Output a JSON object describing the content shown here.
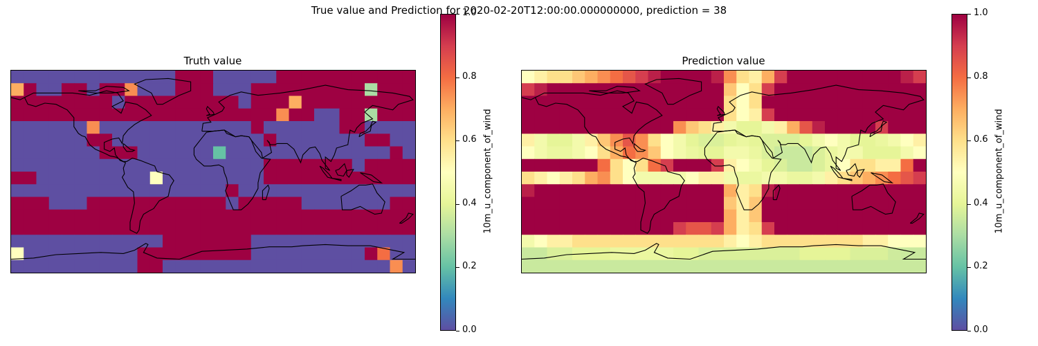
{
  "figure": {
    "suptitle": "True value and Prediction for 2020-02-20T12:00:00.000000000, prediction = 38"
  },
  "chart_data": [
    {
      "type": "heatmap",
      "title": "Truth value",
      "colormap": "Spectral_r",
      "colorbar": {
        "label": "10m_u_component_of_wind",
        "ticks": [
          "0.0",
          "0.2",
          "0.4",
          "0.6",
          "0.8",
          "1.0"
        ],
        "range": [
          0.0,
          1.0
        ]
      },
      "grid": {
        "rows": 16,
        "cols": 32
      },
      "values": [
        [
          0,
          0,
          0,
          0,
          0,
          0,
          0,
          0,
          0,
          0,
          0,
          0,
          0,
          1,
          1,
          1,
          0,
          0,
          0,
          0,
          0,
          1,
          1,
          1,
          1,
          1,
          1,
          1,
          1,
          1,
          1,
          1
        ],
        [
          0.7,
          1,
          0,
          0,
          1,
          1,
          0,
          1,
          1,
          0.75,
          0,
          0,
          0,
          1,
          1,
          1,
          0,
          0,
          0,
          1,
          1,
          1,
          1,
          1,
          1,
          1,
          1,
          1,
          0.3,
          1,
          1,
          1
        ],
        [
          1,
          1,
          1,
          1,
          1,
          1,
          1,
          1,
          0,
          1,
          1,
          1,
          1,
          1,
          1,
          1,
          1,
          1,
          0,
          1,
          1,
          1,
          0.7,
          1,
          1,
          1,
          1,
          1,
          1,
          1,
          1,
          1
        ],
        [
          1,
          1,
          1,
          1,
          1,
          1,
          1,
          1,
          1,
          1,
          1,
          1,
          1,
          1,
          1,
          1,
          1,
          1,
          1,
          1,
          1,
          0.75,
          1,
          1,
          0,
          0,
          1,
          1,
          0.3,
          1,
          1,
          1
        ],
        [
          0,
          0,
          0,
          0,
          0,
          0,
          0.75,
          0,
          0,
          0,
          0,
          0,
          0,
          0,
          0,
          0,
          0,
          0,
          0,
          1,
          0,
          0,
          0,
          0,
          0,
          0,
          1,
          1,
          0,
          0,
          0,
          0
        ],
        [
          0,
          0,
          0,
          0,
          0,
          0,
          1,
          1,
          0,
          0,
          0,
          0,
          0,
          0,
          0,
          0,
          0,
          0,
          0,
          0,
          1,
          0,
          0,
          0,
          0,
          0,
          0,
          0,
          1,
          1,
          0,
          0
        ],
        [
          0,
          0,
          0,
          0,
          0,
          0,
          0,
          1,
          1,
          1,
          0,
          0,
          0,
          0,
          0,
          0,
          0.2,
          0,
          0,
          0,
          0,
          0,
          0,
          0,
          0,
          0,
          0,
          0,
          0,
          0,
          1,
          0
        ],
        [
          0,
          0,
          0,
          0,
          0,
          0,
          0,
          0,
          0,
          0,
          0,
          0,
          0,
          0,
          0,
          0,
          0,
          0,
          0,
          0,
          1,
          1,
          1,
          1,
          1,
          1,
          1,
          0,
          1,
          1,
          1,
          1
        ],
        [
          1,
          1,
          0,
          0,
          0,
          0,
          0,
          0,
          0,
          0,
          0,
          0.5,
          0,
          0,
          0,
          0,
          0,
          0,
          0,
          0,
          1,
          1,
          1,
          1,
          1,
          1,
          1,
          1,
          1,
          1,
          1,
          1
        ],
        [
          0,
          0,
          0,
          0,
          0,
          0,
          0,
          0,
          0,
          0,
          0,
          0,
          0,
          0,
          0,
          0,
          0,
          1,
          0,
          0,
          0,
          0,
          0,
          0,
          0,
          0,
          0,
          0,
          0,
          0,
          0,
          0
        ],
        [
          1,
          1,
          1,
          0,
          0,
          0,
          1,
          1,
          1,
          1,
          1,
          1,
          1,
          1,
          1,
          1,
          1,
          0,
          1,
          1,
          1,
          1,
          1,
          0,
          0,
          0,
          0,
          0,
          0,
          0,
          1,
          1
        ],
        [
          1,
          1,
          1,
          1,
          1,
          1,
          1,
          1,
          1,
          1,
          1,
          1,
          1,
          1,
          1,
          1,
          1,
          1,
          1,
          1,
          1,
          1,
          1,
          1,
          1,
          1,
          1,
          1,
          1,
          1,
          1,
          1
        ],
        [
          1,
          1,
          1,
          1,
          1,
          1,
          1,
          1,
          1,
          1,
          1,
          1,
          1,
          1,
          1,
          1,
          1,
          1,
          1,
          1,
          1,
          1,
          1,
          1,
          1,
          1,
          1,
          1,
          1,
          1,
          1,
          1
        ],
        [
          0,
          0,
          0,
          0,
          0,
          0,
          0,
          0,
          0,
          0,
          0,
          0,
          1,
          1,
          1,
          1,
          1,
          1,
          1,
          0,
          0,
          0,
          0,
          0,
          0,
          0,
          0,
          0,
          0,
          0,
          0,
          0
        ],
        [
          0.5,
          0,
          0,
          0,
          0,
          0,
          0,
          0,
          0,
          0,
          1,
          1,
          1,
          1,
          1,
          1,
          1,
          1,
          1,
          0,
          0,
          0,
          0,
          0,
          0,
          0,
          0,
          0,
          1,
          0.8,
          0,
          0
        ],
        [
          0,
          0,
          0,
          0,
          0,
          0,
          0,
          0,
          0,
          0,
          1,
          1,
          0,
          0,
          0,
          0,
          0,
          0,
          0,
          0,
          0,
          0,
          0,
          0,
          0,
          0,
          0,
          0,
          0,
          0,
          0.75,
          0
        ]
      ]
    },
    {
      "type": "heatmap",
      "title": "Prediction value",
      "colormap": "Spectral_r",
      "colorbar": {
        "label": "10m_u_component_of_wind",
        "ticks": [
          "0.0",
          "0.2",
          "0.4",
          "0.6",
          "0.8",
          "1.0"
        ],
        "range": [
          0.0,
          1.0
        ]
      },
      "grid": {
        "rows": 16,
        "cols": 32
      },
      "values": [
        [
          0.5,
          0.55,
          0.6,
          0.6,
          0.65,
          0.7,
          0.75,
          0.8,
          0.85,
          0.9,
          0.95,
          1,
          1,
          1,
          1,
          0.95,
          0.75,
          0.6,
          0.55,
          0.7,
          0.9,
          1,
          1,
          1,
          1,
          1,
          1,
          1,
          1,
          1,
          0.95,
          0.9
        ],
        [
          0.9,
          0.95,
          1,
          1,
          1,
          1,
          1,
          1,
          1,
          1,
          1,
          1,
          1,
          1,
          1,
          1,
          0.65,
          0.5,
          0.6,
          0.9,
          1,
          1,
          1,
          1,
          1,
          1,
          1,
          1,
          1,
          1,
          1,
          1
        ],
        [
          1,
          1,
          1,
          1,
          1,
          1,
          1,
          1,
          1,
          1,
          1,
          1,
          1,
          1,
          1,
          1,
          0.6,
          0.5,
          0.6,
          1,
          1,
          1,
          1,
          1,
          1,
          1,
          1,
          1,
          1,
          1,
          1,
          1
        ],
        [
          1,
          1,
          1,
          1,
          1,
          1,
          1,
          1,
          1,
          1,
          1,
          1,
          1,
          1,
          1,
          1,
          0.6,
          0.5,
          0.55,
          0.9,
          1,
          1,
          1,
          1,
          1,
          1,
          1,
          1,
          1,
          1,
          1,
          1
        ],
        [
          1,
          1,
          1,
          1,
          1,
          1,
          1,
          1,
          1,
          1,
          1,
          1,
          0.75,
          0.65,
          0.6,
          0.55,
          0.45,
          0.4,
          0.4,
          0.45,
          0.55,
          0.7,
          0.85,
          0.95,
          1,
          1,
          1,
          1,
          0.9,
          1,
          1,
          1
        ],
        [
          0.55,
          0.45,
          0.4,
          0.4,
          0.45,
          0.55,
          0.65,
          0.75,
          0.85,
          0.75,
          0.6,
          0.5,
          0.45,
          0.4,
          0.38,
          0.38,
          0.4,
          0.42,
          0.4,
          0.38,
          0.38,
          0.38,
          0.4,
          0.45,
          0.5,
          0.45,
          0.4,
          0.4,
          0.42,
          0.45,
          0.5,
          0.55
        ],
        [
          0.5,
          0.45,
          0.42,
          0.42,
          0.45,
          0.5,
          0.6,
          0.7,
          0.8,
          0.75,
          0.65,
          0.5,
          0.45,
          0.42,
          0.4,
          0.4,
          0.45,
          0.45,
          0.42,
          0.38,
          0.35,
          0.35,
          0.35,
          0.38,
          0.42,
          0.45,
          0.45,
          0.4,
          0.4,
          0.4,
          0.45,
          0.5
        ],
        [
          1,
          1,
          1,
          1,
          1,
          1,
          0.8,
          0.6,
          0.5,
          0.6,
          0.8,
          0.9,
          1,
          1,
          1,
          0.9,
          0.55,
          0.5,
          0.45,
          0.4,
          0.38,
          0.35,
          0.35,
          0.38,
          0.42,
          0.5,
          0.6,
          0.6,
          0.55,
          0.55,
          0.8,
          1
        ],
        [
          0.6,
          0.55,
          0.5,
          0.55,
          0.6,
          0.7,
          0.75,
          0.6,
          0.5,
          0.45,
          0.45,
          0.45,
          0.45,
          0.5,
          0.55,
          0.55,
          0.45,
          0.42,
          0.42,
          0.45,
          0.45,
          0.42,
          0.42,
          0.45,
          0.55,
          0.6,
          0.65,
          0.7,
          0.75,
          0.8,
          0.85,
          0.9
        ],
        [
          0.95,
          1,
          1,
          1,
          1,
          1,
          1,
          1,
          1,
          1,
          1,
          1,
          1,
          1,
          1,
          1,
          0.7,
          0.55,
          0.6,
          0.95,
          1,
          1,
          1,
          1,
          1,
          1,
          1,
          1,
          1,
          1,
          1,
          1
        ],
        [
          1,
          1,
          1,
          1,
          1,
          1,
          1,
          1,
          1,
          1,
          1,
          1,
          1,
          1,
          1,
          1,
          0.65,
          0.55,
          0.65,
          1,
          1,
          1,
          1,
          1,
          1,
          1,
          1,
          1,
          1,
          1,
          1,
          1
        ],
        [
          1,
          1,
          1,
          1,
          1,
          1,
          1,
          1,
          1,
          1,
          1,
          1,
          1,
          1,
          1,
          1,
          0.7,
          0.55,
          0.65,
          1,
          1,
          1,
          1,
          1,
          1,
          1,
          1,
          1,
          1,
          1,
          1,
          1
        ],
        [
          1,
          1,
          1,
          1,
          1,
          1,
          1,
          1,
          1,
          1,
          1,
          1,
          0.9,
          0.85,
          0.85,
          0.9,
          0.7,
          0.55,
          0.6,
          0.9,
          1,
          1,
          1,
          1,
          1,
          1,
          1,
          1,
          1,
          1,
          1,
          1
        ],
        [
          0.45,
          0.5,
          0.55,
          0.55,
          0.6,
          0.6,
          0.6,
          0.6,
          0.6,
          0.6,
          0.6,
          0.6,
          0.6,
          0.6,
          0.6,
          0.6,
          0.55,
          0.5,
          0.55,
          0.6,
          0.6,
          0.6,
          0.6,
          0.6,
          0.6,
          0.6,
          0.6,
          0.55,
          0.55,
          0.5,
          0.5,
          0.5
        ],
        [
          0.35,
          0.35,
          0.38,
          0.38,
          0.4,
          0.4,
          0.4,
          0.42,
          0.42,
          0.42,
          0.42,
          0.42,
          0.4,
          0.4,
          0.38,
          0.38,
          0.38,
          0.38,
          0.38,
          0.38,
          0.38,
          0.38,
          0.4,
          0.4,
          0.4,
          0.4,
          0.38,
          0.38,
          0.38,
          0.36,
          0.35,
          0.35
        ],
        [
          0.35,
          0.35,
          0.35,
          0.35,
          0.35,
          0.35,
          0.35,
          0.35,
          0.35,
          0.35,
          0.35,
          0.35,
          0.35,
          0.35,
          0.35,
          0.35,
          0.35,
          0.35,
          0.35,
          0.35,
          0.35,
          0.35,
          0.35,
          0.35,
          0.35,
          0.35,
          0.35,
          0.35,
          0.35,
          0.35,
          0.35,
          0.35
        ]
      ]
    }
  ]
}
